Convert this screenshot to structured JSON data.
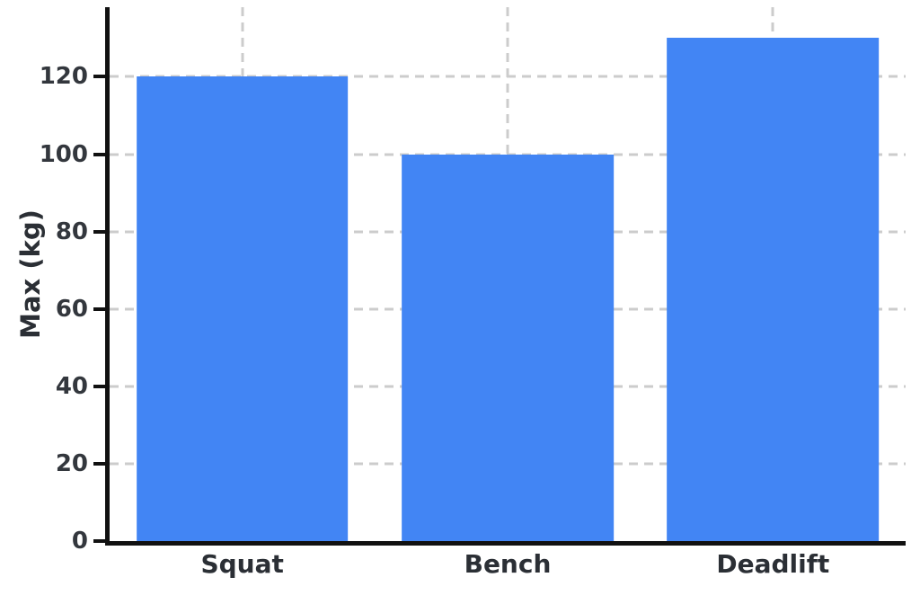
{
  "chart_data": {
    "type": "bar",
    "categories": [
      "Squat",
      "Bench",
      "Deadlift"
    ],
    "values": [
      120,
      100,
      130
    ],
    "ylabel": "Max (kg)",
    "ylim": [
      0,
      138
    ],
    "yticks": [
      0,
      20,
      40,
      60,
      80,
      100,
      120
    ],
    "bar_color": "#4285f4",
    "grid": true,
    "grid_style": "dashed",
    "grid_color": "#cccccc",
    "axis_color": "#111111",
    "legend_position": "none"
  }
}
